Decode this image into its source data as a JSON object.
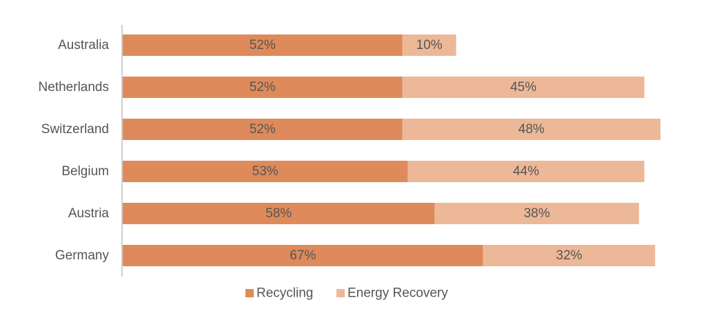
{
  "chart_data": {
    "type": "bar",
    "orientation": "horizontal",
    "stacked": true,
    "categories": [
      "Australia",
      "Netherlands",
      "Switzerland",
      "Belgium",
      "Austria",
      "Germany"
    ],
    "series": [
      {
        "name": "Recycling",
        "values": [
          52,
          52,
          52,
          53,
          58,
          67
        ],
        "labels": [
          "52%",
          "52%",
          "52%",
          "53%",
          "58%",
          "67%"
        ],
        "color": "#DE8A5A"
      },
      {
        "name": "Energy Recovery",
        "values": [
          10,
          45,
          48,
          44,
          38,
          32
        ],
        "labels": [
          "10%",
          "45%",
          "48%",
          "44%",
          "38%",
          "32%"
        ],
        "color": "#EDB898"
      }
    ],
    "xlim": [
      0,
      100
    ],
    "unit": "%",
    "grid": false,
    "legend_position": "bottom"
  }
}
